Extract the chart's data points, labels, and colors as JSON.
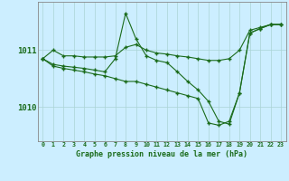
{
  "title": "Graphe pression niveau de la mer (hPa)",
  "bg_color": "#cceeff",
  "line_color": "#1a6b1a",
  "marker_color": "#1a6b1a",
  "grid_color": "#aad4d4",
  "axis_color": "#888888",
  "text_color": "#1a6b1a",
  "xlim": [
    -0.5,
    23.5
  ],
  "ylim": [
    1009.4,
    1011.85
  ],
  "yticks": [
    1010,
    1011
  ],
  "xticks": [
    0,
    1,
    2,
    3,
    4,
    5,
    6,
    7,
    8,
    9,
    10,
    11,
    12,
    13,
    14,
    15,
    16,
    17,
    18,
    19,
    20,
    21,
    22,
    23
  ],
  "series": [
    {
      "x": [
        0,
        1,
        2,
        3,
        4,
        5,
        6,
        7,
        8,
        9,
        10,
        11,
        12,
        13,
        14,
        15,
        16,
        17,
        18,
        19,
        20,
        21,
        22,
        23
      ],
      "y": [
        1010.85,
        1011.0,
        1010.9,
        1010.9,
        1010.88,
        1010.88,
        1010.88,
        1010.9,
        1011.05,
        1011.1,
        1011.0,
        1010.95,
        1010.93,
        1010.9,
        1010.88,
        1010.85,
        1010.82,
        1010.82,
        1010.85,
        1011.0,
        1011.35,
        1011.4,
        1011.45,
        1011.45
      ]
    },
    {
      "x": [
        0,
        1,
        2,
        3,
        4,
        5,
        6,
        7,
        8,
        9,
        10,
        11,
        12,
        13,
        14,
        15,
        16,
        17,
        18,
        19,
        20,
        21,
        22,
        23
      ],
      "y": [
        1010.85,
        1010.75,
        1010.72,
        1010.7,
        1010.68,
        1010.65,
        1010.62,
        1010.85,
        1011.65,
        1011.2,
        1010.9,
        1010.82,
        1010.78,
        1010.62,
        1010.45,
        1010.3,
        1010.1,
        1009.75,
        1009.7,
        1010.25,
        1011.3,
        1011.38,
        1011.45,
        1011.45
      ]
    },
    {
      "x": [
        0,
        1,
        2,
        3,
        4,
        5,
        6,
        7,
        8,
        9,
        10,
        11,
        12,
        13,
        14,
        15,
        16,
        17,
        18,
        19,
        20,
        21,
        22,
        23
      ],
      "y": [
        1010.85,
        1010.72,
        1010.68,
        1010.65,
        1010.62,
        1010.58,
        1010.55,
        1010.5,
        1010.45,
        1010.45,
        1010.4,
        1010.35,
        1010.3,
        1010.25,
        1010.2,
        1010.15,
        1009.72,
        1009.68,
        1009.75,
        1010.25,
        1011.3,
        1011.38,
        1011.45,
        1011.45
      ]
    }
  ]
}
